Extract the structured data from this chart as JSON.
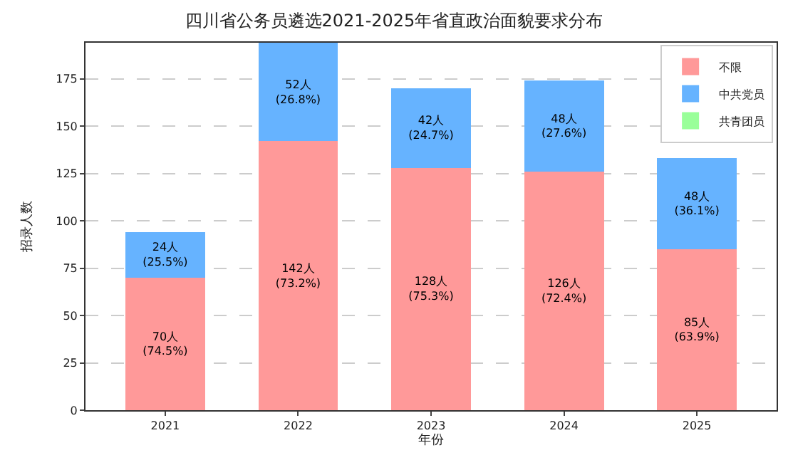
{
  "chart_data": {
    "type": "bar",
    "title": "四川省公务员遴选2021-2025年省直政治面貌要求分布",
    "xlabel": "年份",
    "ylabel": "招录人数",
    "categories": [
      "2021",
      "2022",
      "2023",
      "2024",
      "2025"
    ],
    "stacked": true,
    "series": [
      {
        "name": "不限",
        "color": "#ff9999",
        "values": [
          70,
          142,
          128,
          126,
          85
        ],
        "value_labels": [
          "70人\n(74.5%)",
          "142人\n(73.2%)",
          "128人\n(75.3%)",
          "126人\n(72.4%)",
          "85人\n(63.9%)"
        ]
      },
      {
        "name": "中共党员",
        "color": "#66b3ff",
        "values": [
          24,
          52,
          42,
          48,
          48
        ],
        "value_labels": [
          "24人\n(25.5%)",
          "52人\n(26.8%)",
          "42人\n(24.7%)",
          "48人\n(27.6%)",
          "48人\n(36.1%)"
        ]
      },
      {
        "name": "共青团员",
        "color": "#99ff99",
        "values": [
          0,
          0,
          0,
          0,
          0
        ]
      }
    ],
    "ylim": [
      0,
      194
    ],
    "yticks": [
      0,
      25,
      50,
      75,
      100,
      125,
      150,
      175
    ],
    "grid": "y",
    "legend": "top right"
  }
}
